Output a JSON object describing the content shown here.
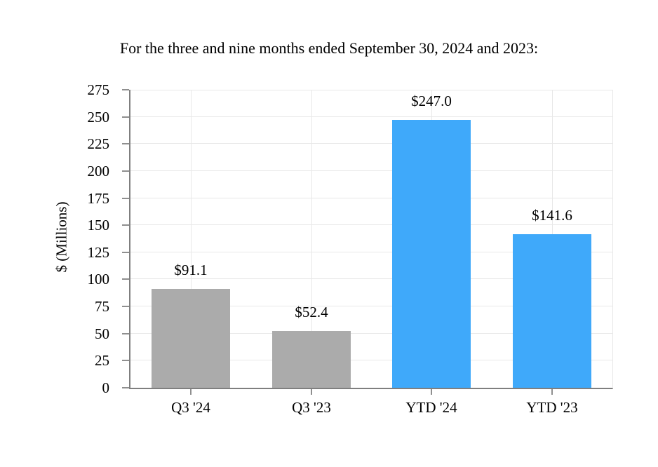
{
  "chart_data": {
    "type": "bar",
    "title": "For the three and nine months ended September 30, 2024 and 2023:",
    "xlabel": "",
    "ylabel": "$ (Millions)",
    "categories": [
      "Q3 '24",
      "Q3 '23",
      "YTD '24",
      "YTD '23"
    ],
    "values": [
      91.1,
      52.4,
      247.0,
      141.6
    ],
    "value_labels": [
      "$91.1",
      "$52.4",
      "$247.0",
      "$141.6"
    ],
    "bar_colors": [
      "#ABABAB",
      "#ABABAB",
      "#3FA9FA",
      "#3FA9FA"
    ],
    "ylim": [
      0,
      275
    ],
    "ytick_values": [
      0,
      25,
      50,
      75,
      100,
      125,
      150,
      175,
      200,
      225,
      250,
      275
    ],
    "ytick_labels": [
      "0",
      "25",
      "50",
      "75",
      "100",
      "125",
      "150",
      "175",
      "200",
      "225",
      "250",
      "275"
    ],
    "grid": "horizontal gridlines at every y tick and vertical gridlines at each category center",
    "legend": "none"
  },
  "colors": {
    "bar_gray": "#ABABAB",
    "bar_blue": "#3FA9FA",
    "axis_line": "#7F7F7F",
    "tick_mark": "#8F8F8F",
    "gridline": "#E8E8E8",
    "text": "#000000",
    "background": "#FFFFFF"
  }
}
